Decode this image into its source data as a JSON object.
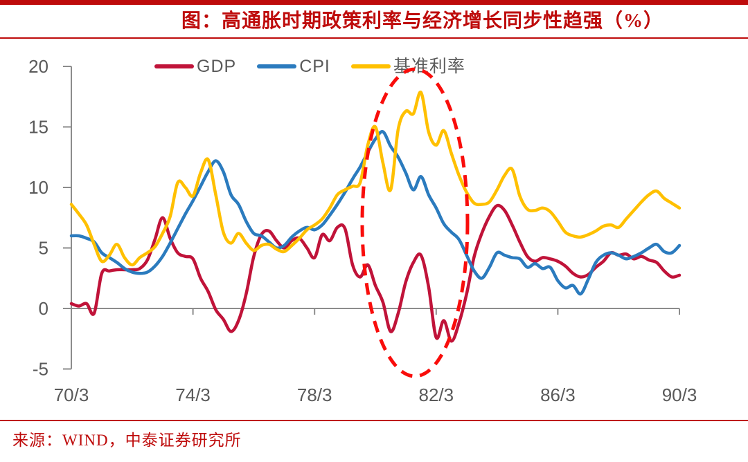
{
  "header": {
    "title": "图：高通胀时期政策利率与经济增长同步性趋强（%）",
    "accent_color": "#BE0B0B"
  },
  "legend": {
    "items": [
      {
        "label": "GDP",
        "color": "#C01339"
      },
      {
        "label": "CPI",
        "color": "#2B7BBE"
      },
      {
        "label": "基准利率",
        "color": "#FFC000"
      }
    ]
  },
  "source": {
    "text": "来源：WIND，中泰证券研究所"
  },
  "chart_data": {
    "type": "line",
    "title": "高通胀时期政策利率与经济增长同步性趋强（%）",
    "x_start": "1970Q1",
    "x_freq": "quarterly",
    "x_tick_labels": [
      "70/3",
      "74/3",
      "78/3",
      "82/3",
      "86/3",
      "90/3"
    ],
    "x_tick_quarters": [
      0,
      16,
      32,
      48,
      64,
      80
    ],
    "y_ticks": [
      20,
      15,
      10,
      5,
      0,
      -5
    ],
    "ylim": [
      -5,
      20
    ],
    "grid": false,
    "legend_position": "top",
    "axis_color": "#8C8C8C",
    "label_color": "#595959",
    "annotation": {
      "shape": "dashed-ellipse",
      "color": "#F90D0B",
      "spans": "1980-1983 high inflation period"
    },
    "series": [
      {
        "name": "GDP",
        "color": "#C01339",
        "values": [
          0.4,
          0.2,
          0.4,
          -0.4,
          2.9,
          3.1,
          3.2,
          3.2,
          3.2,
          3.3,
          4.0,
          5.7,
          7.5,
          5.8,
          4.6,
          4.3,
          4.1,
          2.5,
          1.4,
          -0.1,
          -0.9,
          -1.9,
          -1.0,
          1.2,
          4.3,
          6.1,
          6.4,
          5.6,
          5.0,
          5.6,
          5.8,
          5.0,
          4.2,
          6.1,
          5.6,
          6.7,
          6.6,
          3.6,
          2.6,
          3.6,
          1.9,
          0.5,
          -1.9,
          -0.4,
          2.2,
          3.8,
          4.4,
          1.8,
          -2.4,
          -1.0,
          -2.7,
          -1.2,
          1.2,
          4.3,
          6.2,
          7.6,
          8.5,
          8.1,
          6.9,
          5.5,
          4.3,
          3.9,
          4.2,
          4.1,
          3.9,
          3.5,
          2.9,
          2.6,
          2.8,
          3.4,
          3.9,
          4.6,
          4.4,
          4.5,
          4.1,
          4.3,
          4.0,
          3.8,
          3.1,
          2.6,
          2.75
        ]
      },
      {
        "name": "CPI",
        "color": "#2B7BBE",
        "values": [
          6.0,
          6.0,
          5.8,
          5.5,
          4.6,
          4.2,
          3.8,
          3.3,
          3.0,
          2.9,
          3.0,
          3.5,
          4.3,
          5.4,
          6.6,
          7.8,
          8.9,
          10.1,
          11.3,
          12.2,
          11.3,
          9.4,
          8.6,
          7.2,
          6.2,
          6.0,
          5.5,
          5.0,
          5.2,
          5.9,
          6.4,
          6.7,
          6.5,
          6.9,
          7.7,
          8.6,
          9.6,
          10.7,
          11.7,
          12.9,
          14.0,
          14.6,
          13.4,
          12.5,
          11.2,
          9.8,
          10.9,
          9.4,
          8.3,
          7.0,
          6.3,
          5.7,
          4.4,
          3.1,
          2.5,
          3.4,
          4.6,
          4.4,
          4.2,
          4.1,
          3.4,
          3.7,
          3.3,
          3.4,
          2.3,
          1.7,
          1.9,
          1.2,
          2.4,
          3.8,
          4.4,
          4.6,
          4.4,
          4.1,
          4.3,
          4.6,
          5.0,
          5.3,
          4.7,
          4.6,
          5.2
        ]
      },
      {
        "name": "基准利率",
        "color": "#FFC000",
        "values": [
          8.6,
          7.8,
          6.9,
          5.3,
          3.9,
          4.4,
          5.3,
          4.2,
          3.6,
          4.2,
          4.6,
          5.1,
          6.2,
          7.6,
          10.4,
          10.0,
          9.3,
          11.2,
          12.3,
          9.4,
          6.3,
          5.4,
          6.2,
          5.4,
          4.8,
          5.2,
          5.3,
          4.9,
          4.7,
          5.2,
          5.8,
          6.5,
          6.9,
          7.4,
          8.3,
          9.4,
          9.8,
          10.1,
          10.4,
          13.5,
          15.0,
          12.0,
          9.8,
          14.8,
          16.3,
          16.1,
          17.85,
          14.6,
          13.5,
          14.7,
          12.8,
          11.0,
          9.6,
          8.7,
          8.6,
          8.8,
          9.8,
          11.0,
          11.5,
          9.3,
          8.2,
          8.1,
          8.3,
          8.0,
          7.2,
          6.3,
          6.0,
          5.9,
          6.1,
          6.4,
          6.8,
          6.9,
          6.7,
          7.4,
          8.1,
          8.8,
          9.4,
          9.7,
          9.1,
          8.7,
          8.3
        ]
      }
    ]
  }
}
